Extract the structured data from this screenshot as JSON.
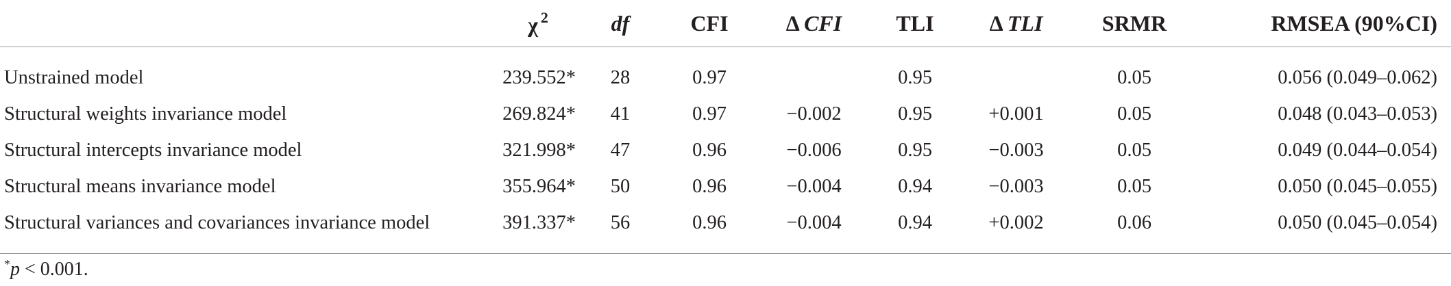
{
  "table": {
    "headers": {
      "label": "",
      "chi_symbol": "χ",
      "chi_superscript": "2",
      "df": "df",
      "cfi": "CFI",
      "delta_cfi_symbol": "Δ",
      "delta_cfi_text": "CFI",
      "tli": "TLI",
      "delta_tli_symbol": "Δ",
      "delta_tli_text": "TLI",
      "srmr": "SRMR",
      "rmsea": "RMSEA (90%CI)"
    },
    "rows": [
      {
        "model": "Unstrained model",
        "chi2": "239.552*",
        "df": "28",
        "cfi": "0.97",
        "delta_cfi": "",
        "tli": "0.95",
        "delta_tli": "",
        "srmr": "0.05",
        "rmsea": "0.056 (0.049–0.062)"
      },
      {
        "model": "Structural weights invariance model",
        "chi2": "269.824*",
        "df": "41",
        "cfi": "0.97",
        "delta_cfi": "−0.002",
        "tli": "0.95",
        "delta_tli": "+0.001",
        "srmr": "0.05",
        "rmsea": "0.048 (0.043–0.053)"
      },
      {
        "model": "Structural intercepts invariance model",
        "chi2": "321.998*",
        "df": "47",
        "cfi": "0.96",
        "delta_cfi": "−0.006",
        "tli": "0.95",
        "delta_tli": "−0.003",
        "srmr": "0.05",
        "rmsea": "0.049 (0.044–0.054)"
      },
      {
        "model": "Structural means invariance model",
        "chi2": "355.964*",
        "df": "50",
        "cfi": "0.96",
        "delta_cfi": "−0.004",
        "tli": "0.94",
        "delta_tli": "−0.003",
        "srmr": "0.05",
        "rmsea": "0.050 (0.045–0.055)"
      },
      {
        "model": "Structural variances and covariances invariance model",
        "chi2": "391.337*",
        "df": "56",
        "cfi": "0.96",
        "delta_cfi": "−0.004",
        "tli": "0.94",
        "delta_tli": "+0.002",
        "srmr": "0.06",
        "rmsea": "0.050 (0.045–0.054)"
      }
    ]
  },
  "footnote": {
    "marker": "*",
    "symbol": "p",
    "text": " < 0.001."
  }
}
